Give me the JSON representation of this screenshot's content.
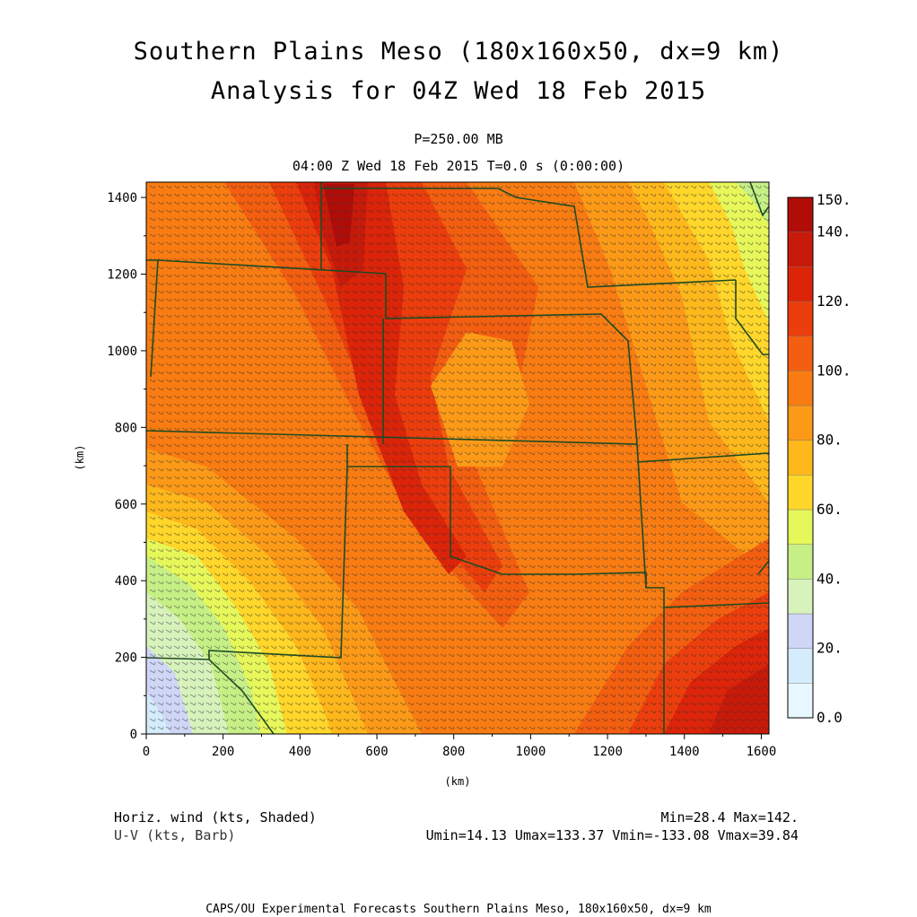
{
  "title": "Southern Plains Meso (180x160x50, dx=9 km)",
  "subtitle": "Analysis for 04Z Wed 18 Feb 2015",
  "level_label": "P=250.00 MB",
  "time_label": "04:00 Z Wed 18 Feb 2015   T=0.0 s (0:00:00)",
  "variable_label": "Horiz. wind (kts, Shaded)",
  "vector_label": "U-V (kts, Barb)",
  "minmax_label": "Min=28.4 Max=142.",
  "uv_stats_label": "Umin=14.13 Umax=133.37 Vmin=-133.08 Vmax=39.84",
  "footer": "CAPS/OU Experimental Forecasts  Southern Plains Meso, 180x160x50, dx=9 km",
  "chart_data": {
    "type": "heatmap",
    "xlabel": "(km)",
    "ylabel": "(km)",
    "xlim": [
      0,
      1620
    ],
    "ylim": [
      0,
      1440
    ],
    "x_ticks": [
      "0",
      "200",
      "400",
      "600",
      "800",
      "1000",
      "1200",
      "1400",
      "1600"
    ],
    "y_ticks": [
      "0",
      "200",
      "400",
      "600",
      "800",
      "1000",
      "1200",
      "1400"
    ],
    "colorbar": {
      "labels": [
        "0.0",
        "20.",
        "40.",
        "60.",
        "80.",
        "100.",
        "120.",
        "140.",
        "150."
      ],
      "bounds": [
        0,
        10,
        20,
        30,
        40,
        50,
        60,
        70,
        80,
        90,
        100,
        110,
        120,
        130,
        140,
        150
      ],
      "colors": [
        "#e8f6ff",
        "#d4ecfb",
        "#cfd6f6",
        "#d8f2bc",
        "#c6ef86",
        "#e6f75a",
        "#ffd62a",
        "#ffb81c",
        "#fc9a18",
        "#f87c12",
        "#f35e10",
        "#ec3e0c",
        "#dc2409",
        "#c81a0a",
        "#b00d08"
      ]
    },
    "field_summary": {
      "min": 28.4,
      "max": 142,
      "jet_core_max": [
        [
          480,
          1350,
          142
        ],
        [
          930,
          420,
          110
        ],
        [
          1590,
          60,
          138
        ]
      ],
      "weak_areas": [
        [
          20,
          30,
          28.4
        ],
        [
          1600,
          1400,
          60
        ]
      ]
    },
    "wind_barbs": "dense field of barbs, predominantly from the northwest in the west, from the west-southwest in the east",
    "map_overlay": "US state boundaries (Southern/Central Plains)"
  }
}
